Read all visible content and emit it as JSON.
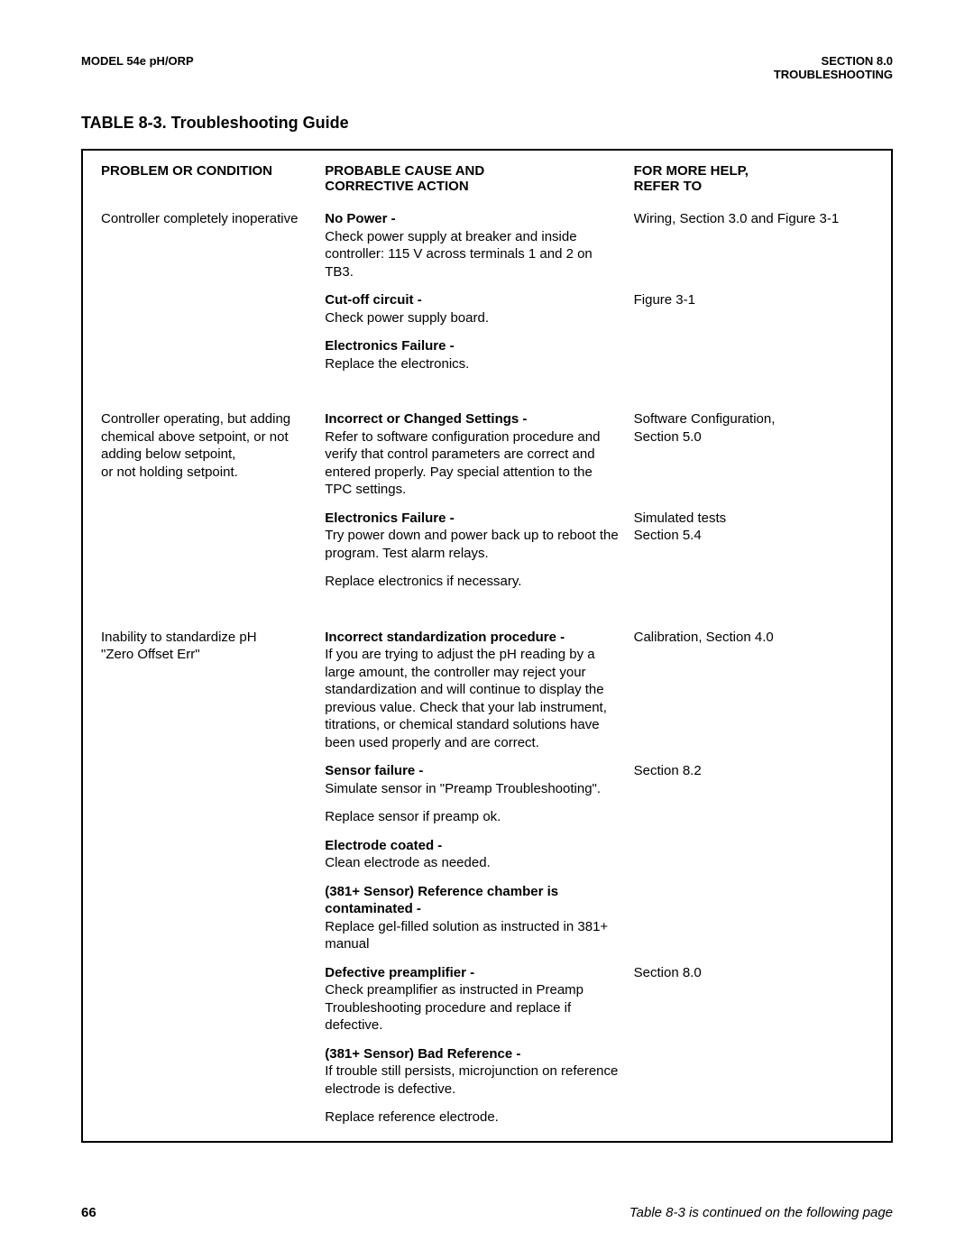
{
  "header": {
    "left": "MODEL 54e pH/ORP",
    "right_line1": "SECTION 8.0",
    "right_line2": "TROUBLESHOOTING"
  },
  "table_title": "TABLE 8-3.  Troubleshooting Guide",
  "col_heads": {
    "c1": "PROBLEM OR CONDITION",
    "c2_line1": "PROBABLE CAUSE AND",
    "c2_line2": "CORRECTIVE ACTION",
    "c3_line1": "FOR MORE HELP,",
    "c3_line2": "REFER TO"
  },
  "groups": [
    {
      "problem": "Controller completely inoperative",
      "rows": [
        {
          "cause_bold": "No Power -",
          "cause_text": "Check power supply at breaker and inside controller: 115 V across terminals 1 and 2 on TB3.",
          "ref": "Wiring, Section 3.0 and Figure 3-1"
        },
        {
          "cause_bold": "Cut-off circuit -",
          "cause_text": "Check power supply board.",
          "ref": "Figure 3-1"
        },
        {
          "cause_bold": "Electronics Failure -",
          "cause_text": "Replace the electronics.",
          "ref": ""
        }
      ]
    },
    {
      "problem": "Controller operating, but adding chemical above setpoint, or not adding below setpoint,\nor not holding setpoint.",
      "rows": [
        {
          "cause_bold": "Incorrect or Changed Settings -",
          "cause_text": "Refer to software configuration procedure and verify that control parameters are correct and entered properly. Pay special attention to the TPC  settings.",
          "ref": "Software Configuration,\nSection 5.0"
        },
        {
          "cause_bold": "Electronics Failure -",
          "cause_text": "Try power down and power back up to reboot the program. Test alarm relays.",
          "ref": "Simulated tests\nSection 5.4"
        },
        {
          "cause_bold": "",
          "cause_text": "Replace electronics if necessary.",
          "ref": ""
        }
      ]
    },
    {
      "problem": "Inability to standardize pH\n\"Zero Offset Err\"",
      "rows": [
        {
          "cause_bold": "Incorrect standardization procedure -",
          "cause_text": "If you are trying to adjust the pH reading by a large amount, the controller may reject your standardization and will continue to display the previous value. Check that your lab instrument, titrations, or chemical standard solutions have been used properly and are correct.",
          "ref": "Calibration, Section 4.0"
        },
        {
          "cause_bold": "Sensor failure -",
          "cause_text": "Simulate sensor in \"Preamp Troubleshooting\".",
          "ref": "Section 8.2"
        },
        {
          "cause_bold": "",
          "cause_text": "Replace sensor if preamp ok.",
          "ref": ""
        },
        {
          "cause_bold": "Electrode coated -",
          "cause_text": "Clean electrode as needed.",
          "ref": ""
        },
        {
          "cause_bold": "(381+ Sensor) Reference chamber is contaminated -",
          "cause_text": "Replace gel-filled solution as instructed in 381+ manual",
          "ref": ""
        },
        {
          "cause_bold": "Defective preamplifier -",
          "cause_text": "Check preamplifier as instructed in Preamp Troubleshooting procedure and replace if defective.",
          "ref": "Section 8.0"
        },
        {
          "cause_bold": "(381+ Sensor) Bad Reference -",
          "cause_text": "If trouble still persists, microjunction on reference electrode is defective.",
          "ref": ""
        },
        {
          "cause_bold": "",
          "cause_text": "Replace reference electrode.",
          "ref": ""
        }
      ]
    }
  ],
  "footer": {
    "page": "66",
    "continued": "Table 8-3 is continued on the following page"
  }
}
